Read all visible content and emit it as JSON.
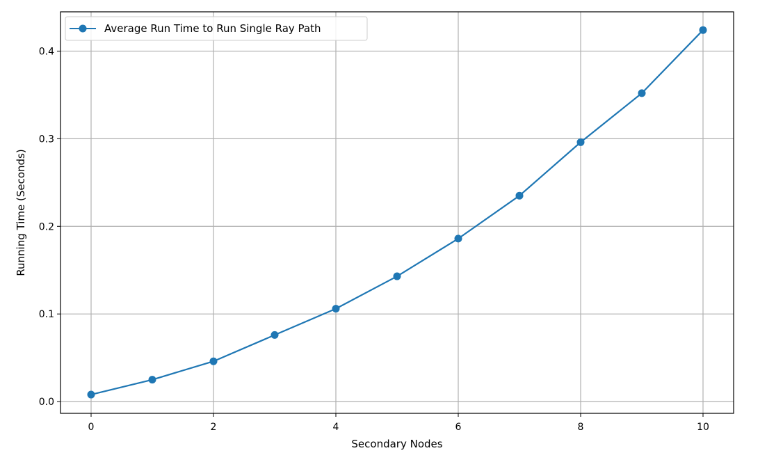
{
  "chart_data": {
    "type": "line",
    "xlabel": "Secondary Nodes",
    "ylabel": "Running Time (Seconds)",
    "xlim": [
      -0.5,
      10.5
    ],
    "ylim": [
      -0.0134,
      0.4448
    ],
    "xticks": [
      0,
      2,
      4,
      6,
      8,
      10
    ],
    "yticks": [
      0.0,
      0.1,
      0.2,
      0.3,
      0.4
    ],
    "xtick_labels": [
      "0",
      "2",
      "4",
      "6",
      "8",
      "10"
    ],
    "ytick_labels": [
      "0.0",
      "0.1",
      "0.2",
      "0.3",
      "0.4"
    ],
    "grid": true,
    "legend_position": "top-left",
    "series": [
      {
        "name": "Average Run Time to Run Single Ray Path",
        "color": "#1f77b4",
        "marker": "circle",
        "x": [
          0,
          1,
          2,
          3,
          4,
          5,
          6,
          7,
          8,
          9,
          10
        ],
        "y": [
          0.008,
          0.025,
          0.046,
          0.076,
          0.106,
          0.143,
          0.186,
          0.235,
          0.296,
          0.352,
          0.424
        ]
      }
    ]
  }
}
